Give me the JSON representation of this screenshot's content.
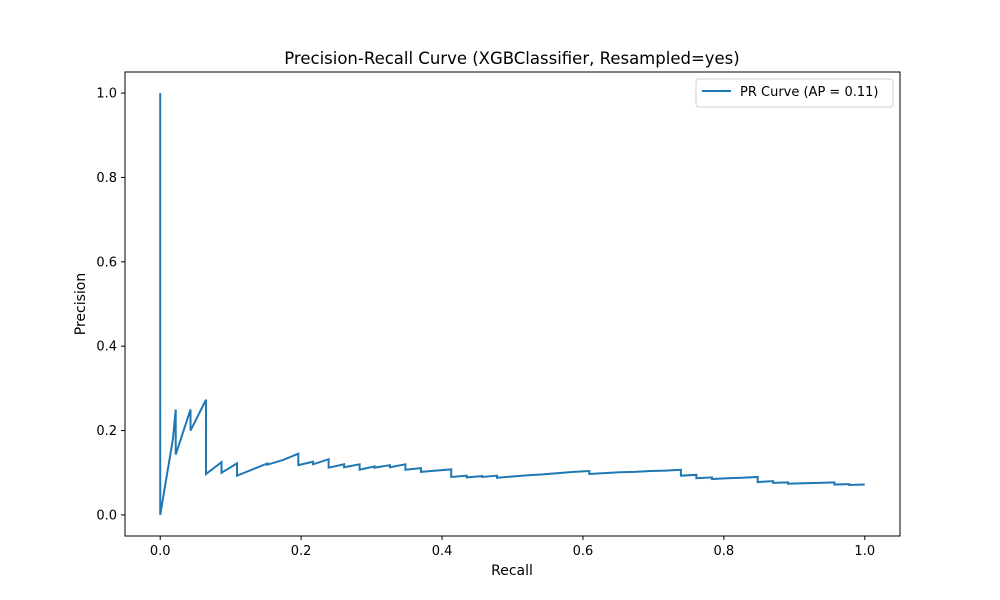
{
  "chart_data": {
    "type": "line",
    "title": "Precision-Recall Curve (XGBClassifier, Resampled=yes)",
    "xlabel": "Recall",
    "ylabel": "Precision",
    "xlim": [
      -0.05,
      1.05
    ],
    "ylim": [
      -0.05,
      1.05
    ],
    "xticks": [
      0.0,
      0.2,
      0.4,
      0.6,
      0.8,
      1.0
    ],
    "xtick_labels": [
      "0.0",
      "0.2",
      "0.4",
      "0.6",
      "0.8",
      "1.0"
    ],
    "yticks": [
      0.0,
      0.2,
      0.4,
      0.6,
      0.8,
      1.0
    ],
    "ytick_labels": [
      "0.0",
      "0.2",
      "0.4",
      "0.6",
      "0.8",
      "1.0"
    ],
    "grid": false,
    "legend_position": "top-right",
    "series": [
      {
        "name": "PR Curve (AP = 0.11)",
        "color": "#1f77b4",
        "x": [
          0.0,
          0.0,
          0.0,
          0.018,
          0.022,
          0.022,
          0.043,
          0.043,
          0.065,
          0.065,
          0.087,
          0.087,
          0.109,
          0.109,
          0.152,
          0.152,
          0.174,
          0.196,
          0.196,
          0.217,
          0.217,
          0.239,
          0.239,
          0.261,
          0.261,
          0.283,
          0.283,
          0.304,
          0.304,
          0.326,
          0.326,
          0.348,
          0.348,
          0.37,
          0.37,
          0.391,
          0.413,
          0.413,
          0.435,
          0.435,
          0.457,
          0.457,
          0.478,
          0.478,
          0.5,
          0.522,
          0.543,
          0.565,
          0.587,
          0.609,
          0.609,
          0.63,
          0.652,
          0.674,
          0.696,
          0.717,
          0.739,
          0.739,
          0.761,
          0.761,
          0.783,
          0.783,
          0.804,
          0.826,
          0.848,
          0.848,
          0.87,
          0.87,
          0.891,
          0.891,
          0.913,
          0.935,
          0.957,
          0.957,
          0.978,
          0.978,
          1.0
        ],
        "y": [
          1.0,
          0.0,
          0.0,
          0.18,
          0.25,
          0.143,
          0.25,
          0.2,
          0.273,
          0.097,
          0.125,
          0.1,
          0.122,
          0.093,
          0.122,
          0.119,
          0.13,
          0.145,
          0.118,
          0.126,
          0.12,
          0.132,
          0.112,
          0.12,
          0.113,
          0.12,
          0.107,
          0.115,
          0.112,
          0.118,
          0.113,
          0.12,
          0.107,
          0.111,
          0.102,
          0.105,
          0.108,
          0.09,
          0.093,
          0.089,
          0.092,
          0.09,
          0.093,
          0.088,
          0.091,
          0.094,
          0.096,
          0.099,
          0.102,
          0.104,
          0.097,
          0.099,
          0.101,
          0.102,
          0.104,
          0.105,
          0.107,
          0.093,
          0.095,
          0.087,
          0.089,
          0.085,
          0.087,
          0.088,
          0.09,
          0.078,
          0.08,
          0.076,
          0.077,
          0.074,
          0.075,
          0.076,
          0.077,
          0.072,
          0.073,
          0.071,
          0.072
        ]
      }
    ]
  }
}
